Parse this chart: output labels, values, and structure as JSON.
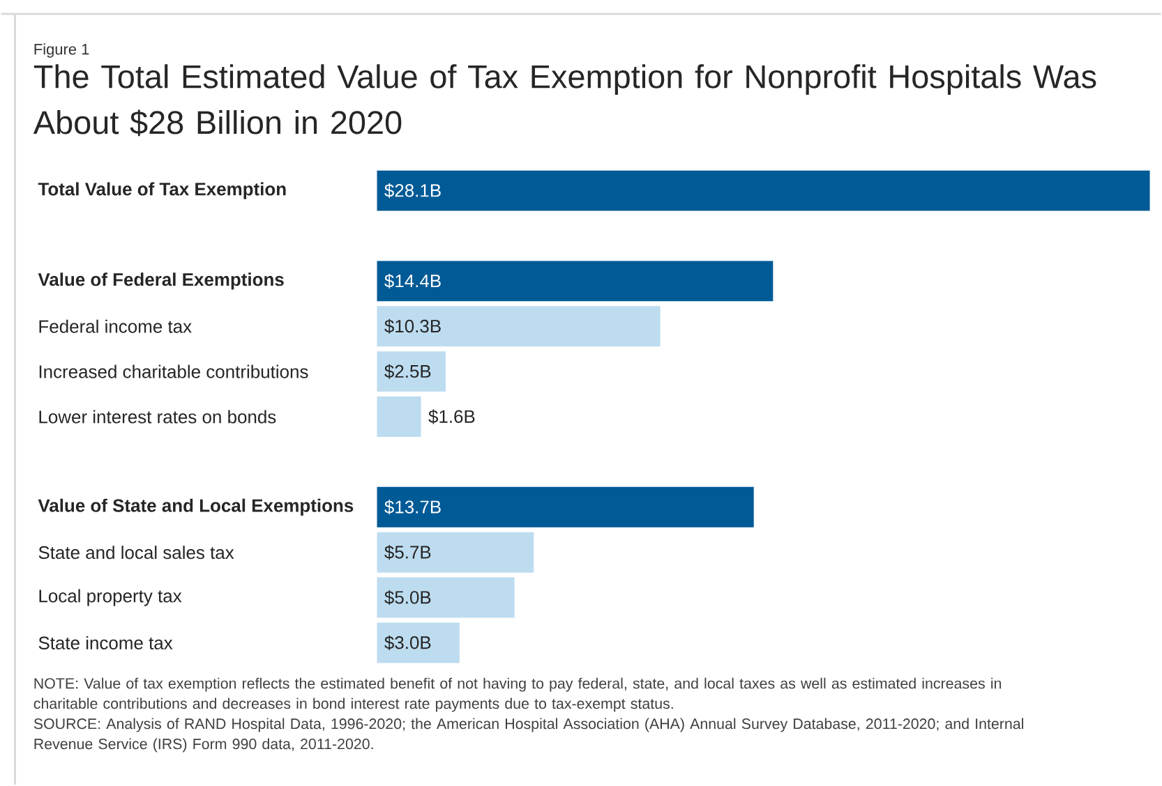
{
  "chart_data": {
    "type": "bar",
    "orientation": "horizontal",
    "title": "The Total Estimated Value of Tax Exemption for Nonprofit Hospitals Was About $28 Billion in 2020",
    "categories": [
      "Total Value of Tax Exemption",
      null,
      "Value of Federal Exemptions",
      "Federal income tax",
      "Increased charitable contributions",
      "Lower interest rates on bonds",
      null,
      "Value of State and Local Exemptions",
      "State and local sales tax",
      "Local property tax",
      "State income tax"
    ],
    "values": [
      28.1,
      null,
      14.4,
      10.3,
      2.5,
      1.6,
      null,
      13.7,
      5.7,
      5.0,
      3.0
    ],
    "value_labels": [
      "$28.1B",
      null,
      "$14.4B",
      "$10.3B",
      "$2.5B",
      "$1.6B",
      null,
      "$13.7B",
      "$5.7B",
      "$5.0B",
      "$3.0B"
    ],
    "colors": [
      "#005a96",
      "#005a96",
      "#005a96",
      "#bddcf0",
      "#bddcf0",
      "#bddcf0",
      "#bddcf0",
      "#005a96",
      "#bddcf0",
      "#bddcf0",
      "#bddcf0"
    ],
    "annotations": [
      "Figure 1",
      "NOTE: Value of tax exemption reflects the estimated benefit of not having to pay federal, state, and local taxes as well as estimated increases in charitable contributions and decreases in bond interest rate payments due to tax-exempt status.",
      "SOURCE: Analysis of RAND Hospital Data, 1996-2020; the American Hospital Association (AHA) Annual Survey Database, 2011-2020; and Internal Revenue Service (IRS) Form 990 data, 2011-2020."
    ]
  }
}
